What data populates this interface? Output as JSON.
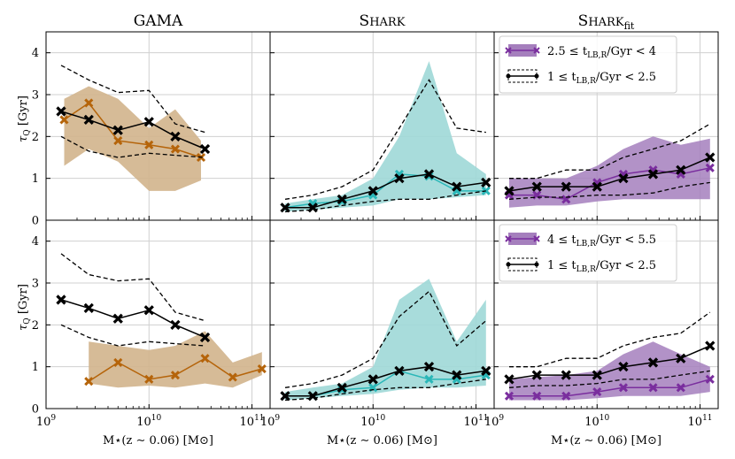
{
  "chart_data": {
    "type": "line",
    "layout": "2x3 grid of panels sharing axes",
    "column_titles": [
      "GAMA",
      "SHARK",
      "SHARK"
    ],
    "column_title_subscripts": [
      "",
      "",
      "fit"
    ],
    "xlabel": "M⋆(z ∼ 0.06) [M⊙]",
    "ylabel": "τQ [Gyr]",
    "x_scale": "log",
    "xlim": [
      1000000000,
      150000000000
    ],
    "ylim": [
      0,
      4.5
    ],
    "x_ticks": [
      {
        "value": 1000000000,
        "base": "10",
        "exp": "9"
      },
      {
        "value": 10000000000,
        "base": "10",
        "exp": "10"
      },
      {
        "value": 100000000000,
        "base": "10",
        "exp": "11"
      }
    ],
    "y_ticks": [
      "0",
      "1",
      "2",
      "3",
      "4"
    ],
    "grid": true,
    "colors": {
      "gama": "#b5640a",
      "gama_fill": "#d2b48c",
      "shark": "#2ab7b8",
      "shark_fill": "#9fd8d7",
      "fit": "#7a2e9e",
      "fit_fill": "#a57fbd",
      "reference": "#000000"
    },
    "legends": [
      {
        "row": 0,
        "entries": [
          {
            "label_main": "2.5 ≤ t",
            "label_sub": "LB,R",
            "label_tail": "/Gyr < 4",
            "style": "purple"
          },
          {
            "label_main": "1 ≤ t",
            "label_sub": "LB,R",
            "label_tail": "/Gyr < 2.5",
            "style": "black"
          }
        ]
      },
      {
        "row": 1,
        "entries": [
          {
            "label_main": "4 ≤ t",
            "label_sub": "LB,R",
            "label_tail": "/Gyr < 5.5",
            "style": "purple"
          },
          {
            "label_main": "1 ≤ t",
            "label_sub": "LB,R",
            "label_tail": "/Gyr < 2.5",
            "style": "black"
          }
        ]
      }
    ],
    "panels": [
      {
        "name": "gama-row1",
        "row": 0,
        "col": 0,
        "reference": {
          "mass": [
            1400000000.0,
            2600000000.0,
            5000000000.0,
            10000000000.0,
            18000000000.0,
            35000000000.0
          ],
          "median": [
            2.6,
            2.4,
            2.15,
            2.35,
            2.0,
            1.7
          ],
          "upper": [
            3.7,
            3.35,
            3.05,
            3.1,
            2.3,
            2.1
          ],
          "lower": [
            2.0,
            1.65,
            1.5,
            1.6,
            1.55,
            1.5
          ]
        },
        "series": {
          "color_key": "gama",
          "mass": [
            1500000000.0,
            2600000000.0,
            5000000000.0,
            10000000000.0,
            18000000000.0,
            32000000000.0
          ],
          "median": [
            2.4,
            2.8,
            1.9,
            1.8,
            1.7,
            1.5
          ],
          "upper": [
            2.9,
            3.2,
            2.9,
            2.2,
            2.65,
            1.9
          ],
          "lower": [
            1.3,
            1.7,
            1.4,
            0.7,
            0.7,
            0.95
          ]
        }
      },
      {
        "name": "shark-row1",
        "row": 0,
        "col": 1,
        "reference": {
          "mass": [
            1400000000.0,
            2600000000.0,
            5000000000.0,
            10000000000.0,
            18000000000.0,
            35000000000.0,
            65000000000.0,
            125000000000.0
          ],
          "median": [
            0.3,
            0.3,
            0.5,
            0.7,
            1.0,
            1.1,
            0.8,
            0.9
          ],
          "upper": [
            0.5,
            0.6,
            0.8,
            1.2,
            2.2,
            3.35,
            2.2,
            2.1
          ],
          "lower": [
            0.2,
            0.25,
            0.35,
            0.45,
            0.5,
            0.5,
            0.6,
            0.7
          ]
        },
        "series": {
          "color_key": "shark",
          "mass": [
            1400000000.0,
            2600000000.0,
            5000000000.0,
            10000000000.0,
            18000000000.0,
            35000000000.0,
            65000000000.0,
            125000000000.0
          ],
          "median": [
            0.3,
            0.4,
            0.45,
            0.6,
            1.1,
            1.05,
            0.7,
            0.7
          ],
          "upper": [
            0.4,
            0.5,
            0.6,
            1.0,
            2.0,
            3.8,
            1.6,
            1.1
          ],
          "lower": [
            0.2,
            0.25,
            0.3,
            0.35,
            0.5,
            0.5,
            0.55,
            0.6
          ]
        }
      },
      {
        "name": "sharkfit-row1",
        "row": 0,
        "col": 2,
        "reference": {
          "mass": [
            1400000000.0,
            2600000000.0,
            5000000000.0,
            10000000000.0,
            18000000000.0,
            35000000000.0,
            65000000000.0,
            125000000000.0
          ],
          "median": [
            0.7,
            0.8,
            0.8,
            0.8,
            1.0,
            1.1,
            1.2,
            1.5
          ],
          "upper": [
            1.0,
            1.0,
            1.2,
            1.2,
            1.5,
            1.7,
            1.9,
            2.3
          ],
          "lower": [
            0.5,
            0.55,
            0.55,
            0.6,
            0.6,
            0.65,
            0.8,
            0.9
          ]
        },
        "series": {
          "color_key": "fit",
          "mass": [
            1400000000.0,
            2600000000.0,
            5000000000.0,
            10000000000.0,
            18000000000.0,
            35000000000.0,
            65000000000.0,
            125000000000.0
          ],
          "median": [
            0.6,
            0.6,
            0.5,
            0.9,
            1.1,
            1.2,
            1.1,
            1.25
          ],
          "upper": [
            1.0,
            1.0,
            1.0,
            1.3,
            1.7,
            2.0,
            1.8,
            1.95
          ],
          "lower": [
            0.3,
            0.35,
            0.35,
            0.45,
            0.5,
            0.5,
            0.5,
            0.5
          ]
        }
      },
      {
        "name": "gama-row2",
        "row": 1,
        "col": 0,
        "reference": {
          "mass": [
            1400000000.0,
            2600000000.0,
            5000000000.0,
            10000000000.0,
            18000000000.0,
            35000000000.0
          ],
          "median": [
            2.6,
            2.4,
            2.15,
            2.35,
            2.0,
            1.7
          ],
          "upper": [
            3.7,
            3.2,
            3.05,
            3.1,
            2.3,
            2.1
          ],
          "lower": [
            2.0,
            1.7,
            1.5,
            1.6,
            1.55,
            1.5
          ]
        },
        "series": {
          "color_key": "gama",
          "mass": [
            2600000000.0,
            5000000000.0,
            10000000000.0,
            18000000000.0,
            35000000000.0,
            65000000000.0,
            125000000000.0
          ],
          "median": [
            0.65,
            1.1,
            0.7,
            0.8,
            1.2,
            0.75,
            0.95
          ],
          "upper": [
            1.6,
            1.5,
            1.4,
            1.5,
            1.85,
            1.1,
            1.35
          ],
          "lower": [
            0.6,
            0.5,
            0.55,
            0.5,
            0.6,
            0.5,
            0.8
          ]
        }
      },
      {
        "name": "shark-row2",
        "row": 1,
        "col": 1,
        "reference": {
          "mass": [
            1400000000.0,
            2600000000.0,
            5000000000.0,
            10000000000.0,
            18000000000.0,
            35000000000.0,
            65000000000.0,
            125000000000.0
          ],
          "median": [
            0.3,
            0.3,
            0.5,
            0.7,
            0.9,
            1.0,
            0.8,
            0.9
          ],
          "upper": [
            0.5,
            0.6,
            0.8,
            1.2,
            2.2,
            2.8,
            1.5,
            2.1
          ],
          "lower": [
            0.2,
            0.25,
            0.35,
            0.45,
            0.5,
            0.5,
            0.6,
            0.7
          ]
        },
        "series": {
          "color_key": "shark",
          "mass": [
            1400000000.0,
            2600000000.0,
            5000000000.0,
            10000000000.0,
            18000000000.0,
            35000000000.0,
            65000000000.0,
            125000000000.0
          ],
          "median": [
            0.3,
            0.3,
            0.45,
            0.5,
            0.9,
            0.7,
            0.7,
            0.8
          ],
          "upper": [
            0.4,
            0.5,
            0.6,
            1.0,
            2.6,
            3.1,
            1.6,
            2.6
          ],
          "lower": [
            0.2,
            0.25,
            0.3,
            0.35,
            0.45,
            0.5,
            0.5,
            0.55
          ]
        }
      },
      {
        "name": "sharkfit-row2",
        "row": 1,
        "col": 2,
        "reference": {
          "mass": [
            1400000000.0,
            2600000000.0,
            5000000000.0,
            10000000000.0,
            18000000000.0,
            35000000000.0,
            65000000000.0,
            125000000000.0
          ],
          "median": [
            0.7,
            0.8,
            0.8,
            0.8,
            1.0,
            1.1,
            1.2,
            1.5
          ],
          "upper": [
            1.0,
            1.0,
            1.2,
            1.2,
            1.5,
            1.7,
            1.8,
            2.3
          ],
          "lower": [
            0.5,
            0.55,
            0.55,
            0.6,
            0.7,
            0.7,
            0.8,
            0.9
          ]
        },
        "series": {
          "color_key": "fit",
          "mass": [
            1400000000.0,
            2600000000.0,
            5000000000.0,
            10000000000.0,
            18000000000.0,
            35000000000.0,
            65000000000.0,
            125000000000.0
          ],
          "median": [
            0.3,
            0.3,
            0.3,
            0.4,
            0.5,
            0.5,
            0.5,
            0.7
          ],
          "upper": [
            0.7,
            0.75,
            0.8,
            0.9,
            1.3,
            1.6,
            1.3,
            1.0
          ],
          "lower": [
            0.2,
            0.2,
            0.2,
            0.25,
            0.3,
            0.3,
            0.3,
            0.4
          ]
        }
      }
    ]
  }
}
